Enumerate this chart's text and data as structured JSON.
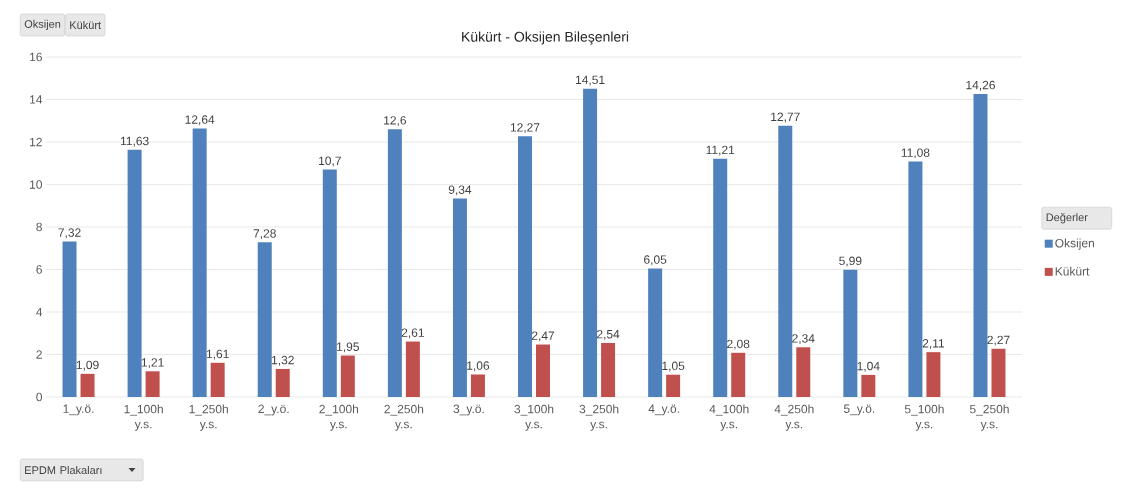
{
  "chart_data": {
    "type": "bar",
    "title": "Kükürt - Oksijen Bileşenleri",
    "xlabel": "EPDM Plakaları",
    "legend_title": "Değerler",
    "annotations": [
      "Oksijen",
      "Kükürt"
    ],
    "categories": [
      "1_y.ö.",
      "1_100h y.s.",
      "1_250h y.s.",
      "2_y.ö.",
      "2_100h y.s.",
      "2_250h y.s.",
      "3_y.ö.",
      "3_100h y.s.",
      "3_250h y.s.",
      "4_y.ö.",
      "4_100h y.s.",
      "4_250h y.s.",
      "5_y.ö.",
      "5_100h y.s.",
      "5_250h y.s."
    ],
    "series": [
      {
        "name": "Oksijen",
        "color": "#4f81bd",
        "values": [
          7.32,
          11.63,
          12.64,
          7.28,
          10.7,
          12.6,
          9.34,
          12.27,
          14.51,
          6.05,
          11.21,
          12.77,
          5.99,
          11.08,
          14.26
        ],
        "value_labels": [
          "7,32",
          "11,63",
          "12,64",
          "7,28",
          "10,7",
          "12,6",
          "9,34",
          "12,27",
          "14,51",
          "6,05",
          "11,21",
          "12,77",
          "5,99",
          "11,08",
          "14,26"
        ]
      },
      {
        "name": "Kükürt",
        "color": "#c0504d",
        "values": [
          1.09,
          1.21,
          1.61,
          1.32,
          1.95,
          2.61,
          1.06,
          2.47,
          2.54,
          1.05,
          2.08,
          2.34,
          1.04,
          2.11,
          2.27
        ],
        "value_labels": [
          "1,09",
          "1,21",
          "1,61",
          "1,32",
          "1,95",
          "2,61",
          "1,06",
          "2,47",
          "2,54",
          "1,05",
          "2,08",
          "2,34",
          "1,04",
          "2,11",
          "2,27"
        ]
      }
    ],
    "ylim": [
      0,
      16
    ],
    "yticks": [
      0,
      2,
      4,
      6,
      8,
      10,
      12,
      14,
      16
    ],
    "grid": "y",
    "legend": "right"
  }
}
